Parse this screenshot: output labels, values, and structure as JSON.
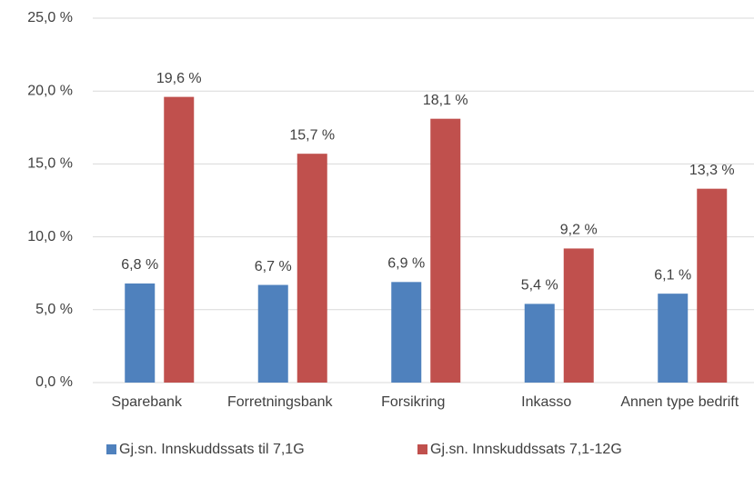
{
  "chart_data": {
    "type": "bar",
    "categories": [
      "Sparebank",
      "Forretningsbank",
      "Forsikring",
      "Inkasso",
      "Annen type bedrift"
    ],
    "series": [
      {
        "name": "Gj.sn. Innskuddssats til 7,1G",
        "color": "#4f81bd",
        "values": [
          6.8,
          6.7,
          6.9,
          5.4,
          6.1
        ],
        "value_labels": [
          "6,8 %",
          "6,7 %",
          "6,9 %",
          "5,4 %",
          "6,1 %"
        ]
      },
      {
        "name": "Gj.sn. Innskuddssats 7,1-12G",
        "color": "#c0504d",
        "values": [
          19.6,
          15.7,
          18.1,
          9.2,
          13.3
        ],
        "value_labels": [
          "19,6 %",
          "15,7 %",
          "18,1 %",
          "9,2 %",
          "13,3 %"
        ]
      }
    ],
    "ylim": [
      0,
      25
    ],
    "yticks": [
      {
        "value": 0,
        "label": "0,0 %"
      },
      {
        "value": 5,
        "label": "5,0 %"
      },
      {
        "value": 10,
        "label": "10,0 %"
      },
      {
        "value": 15,
        "label": "15,0 %"
      },
      {
        "value": 20,
        "label": "20,0 %"
      },
      {
        "value": 25,
        "label": "25,0 %"
      }
    ],
    "grid": true,
    "legend": "bottom"
  }
}
